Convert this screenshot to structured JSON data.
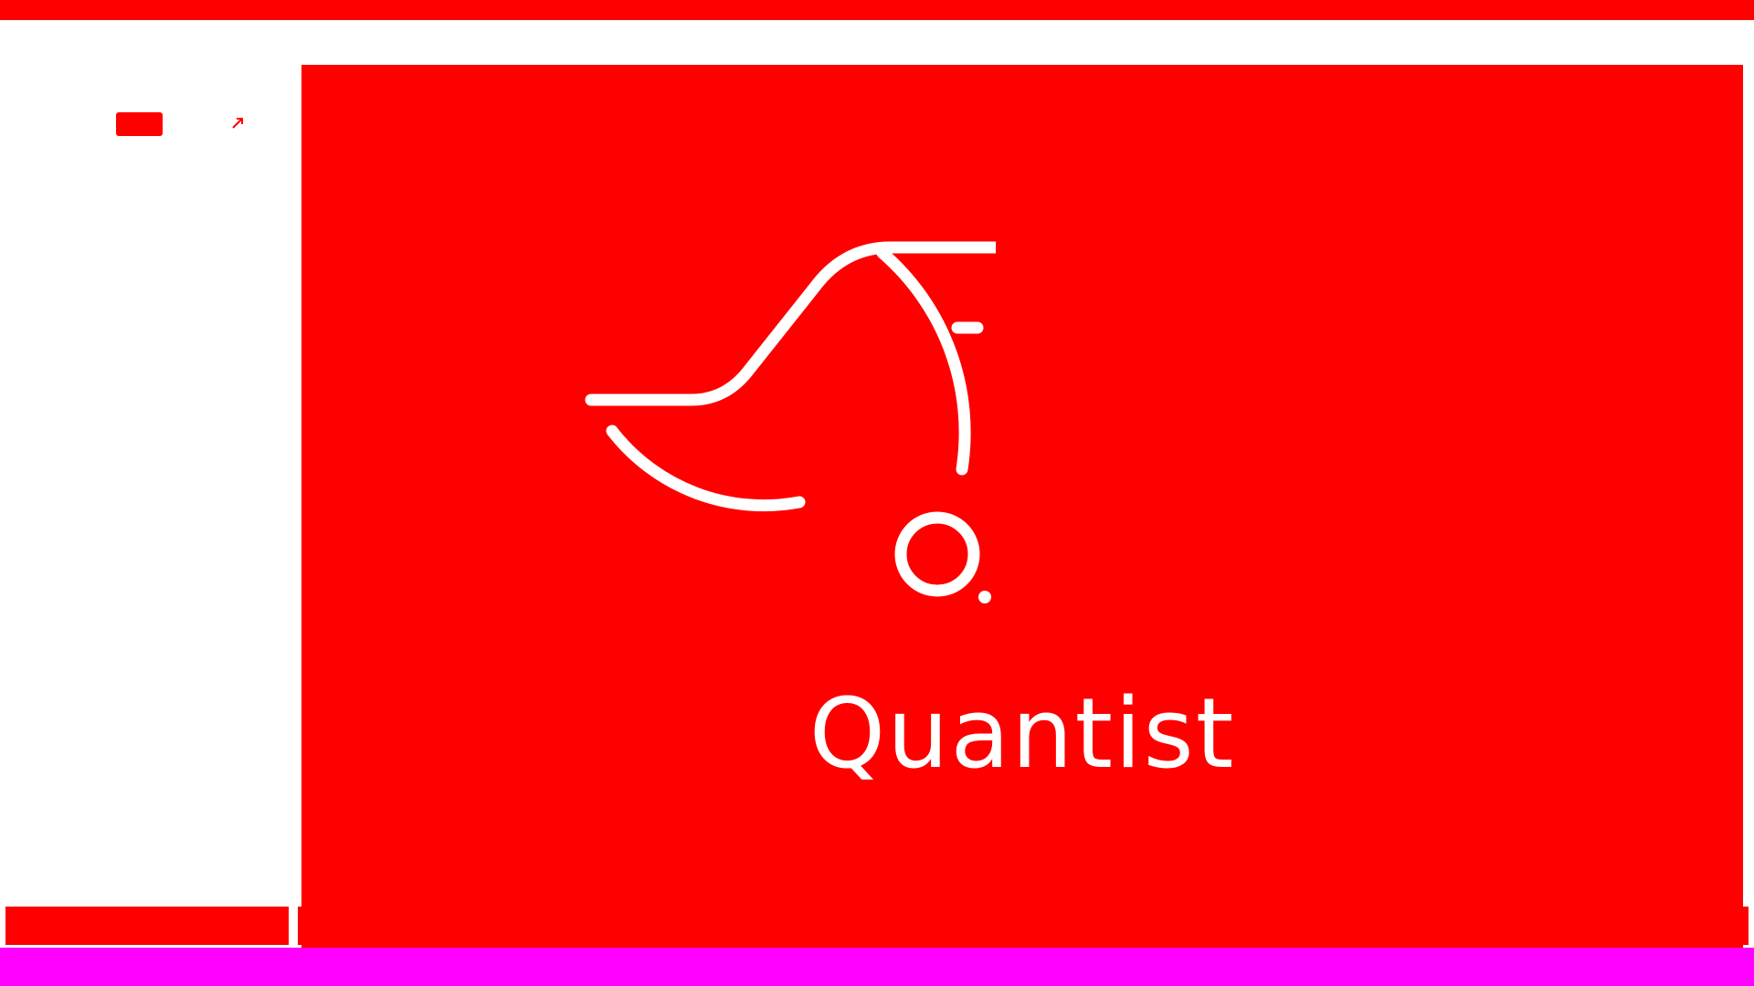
{
  "colors": {
    "accent": "#ff0000",
    "background": "#ffffff",
    "status_bar": "#ff00ff",
    "logo_foreground": "#ffffff"
  },
  "sidebar": {
    "primary_button_label": "",
    "icon": "resize-icon"
  },
  "splash": {
    "logo_icon": "quantist-logo-icon",
    "app_name": "Quantist"
  }
}
